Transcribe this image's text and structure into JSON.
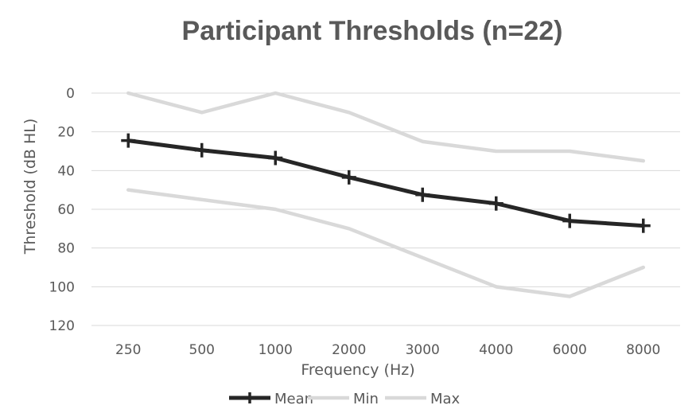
{
  "chart_data": {
    "type": "line",
    "title": "Participant Thresholds (n=22)",
    "xlabel": "Frequency (Hz)",
    "ylabel": "Threshold (dB HL)",
    "categories": [
      "250",
      "500",
      "1000",
      "2000",
      "3000",
      "4000",
      "6000",
      "8000"
    ],
    "ylim": [
      0,
      120
    ],
    "y_inverted": true,
    "y_ticks": [
      "0",
      "20",
      "40",
      "60",
      "80",
      "100",
      "120"
    ],
    "grid": true,
    "legend_position": "bottom",
    "series": [
      {
        "name": "Mean",
        "values": [
          24.5,
          29.5,
          33.5,
          43.5,
          52.5,
          57,
          66,
          68.5
        ],
        "color": "#262626",
        "marker": "plus"
      },
      {
        "name": "Min",
        "values": [
          0,
          10,
          0,
          10,
          25,
          30,
          30,
          35
        ],
        "color": "#d9d9d9",
        "marker": "none"
      },
      {
        "name": "Max",
        "values": [
          50,
          55,
          60,
          70,
          85,
          100,
          105,
          90
        ],
        "color": "#d9d9d9",
        "marker": "none"
      }
    ]
  }
}
